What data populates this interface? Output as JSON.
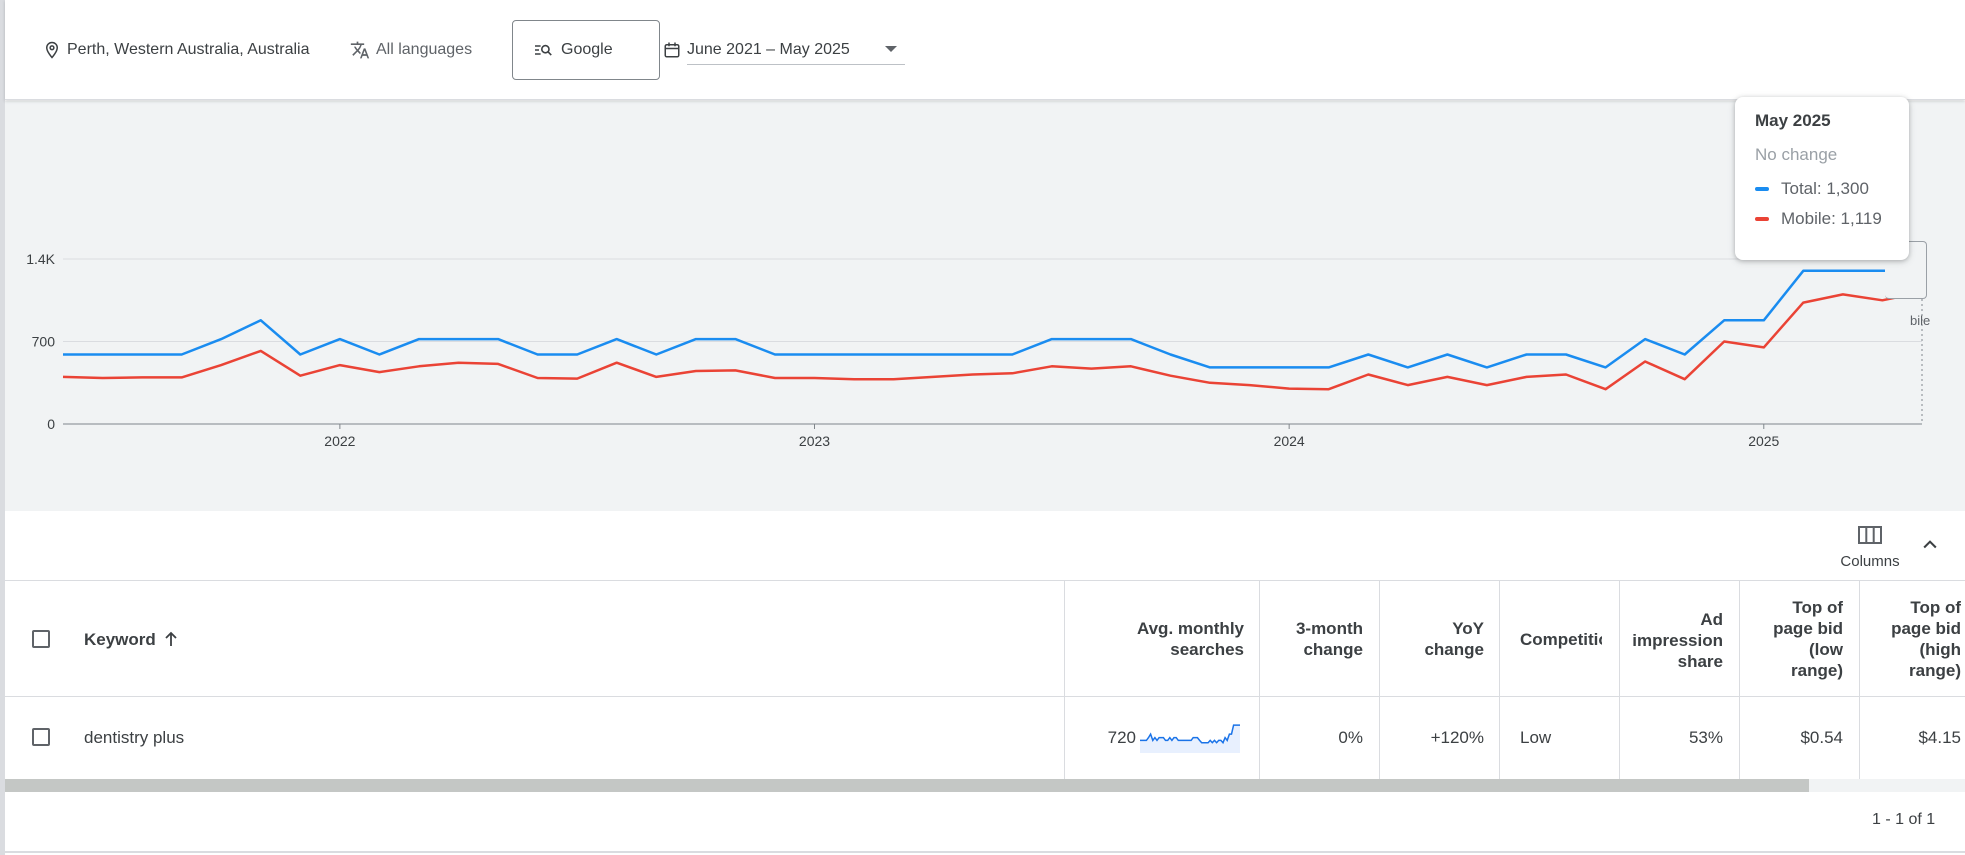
{
  "filters": {
    "location": "Perth, Western Australia, Australia",
    "language": "All languages",
    "network": "Google",
    "date_range": "June 2021 – May 2025"
  },
  "tooltip": {
    "title": "May 2025",
    "subtitle": "No change",
    "total_label": "Total: 1,300",
    "mobile_label": "Mobile: 1,119"
  },
  "behind_tooltip_text": "bile",
  "colors": {
    "total": "#1a8cf0",
    "mobile": "#ea4335",
    "accent": "#1a73e8"
  },
  "chart_data": {
    "type": "line",
    "title": "",
    "xlabel": "",
    "ylabel": "",
    "x_ticks": [
      "2022",
      "2023",
      "2024",
      "2025"
    ],
    "y_ticks": [
      "0",
      "700",
      "1.4K"
    ],
    "ylim": [
      0,
      1400
    ],
    "grid": true,
    "x": [
      "2021-06",
      "2021-07",
      "2021-08",
      "2021-09",
      "2021-10",
      "2021-11",
      "2021-12",
      "2022-01",
      "2022-02",
      "2022-03",
      "2022-04",
      "2022-05",
      "2022-06",
      "2022-07",
      "2022-08",
      "2022-09",
      "2022-10",
      "2022-11",
      "2022-12",
      "2023-01",
      "2023-02",
      "2023-03",
      "2023-04",
      "2023-05",
      "2023-06",
      "2023-07",
      "2023-08",
      "2023-09",
      "2023-10",
      "2023-11",
      "2023-12",
      "2024-01",
      "2024-02",
      "2024-03",
      "2024-04",
      "2024-05",
      "2024-06",
      "2024-07",
      "2024-08",
      "2024-09",
      "2024-10",
      "2024-11",
      "2024-12",
      "2025-01",
      "2025-02",
      "2025-03",
      "2025-04",
      "2025-05"
    ],
    "series": [
      {
        "name": "Total",
        "values": [
          590,
          590,
          590,
          590,
          720,
          880,
          590,
          720,
          590,
          720,
          720,
          720,
          590,
          590,
          720,
          590,
          720,
          720,
          590,
          590,
          590,
          590,
          590,
          590,
          590,
          720,
          720,
          720,
          590,
          480,
          480,
          480,
          480,
          590,
          480,
          590,
          480,
          590,
          590,
          480,
          720,
          590,
          880,
          880,
          1300,
          1300,
          1300,
          1300
        ]
      },
      {
        "name": "Mobile",
        "values": [
          400,
          390,
          395,
          395,
          500,
          620,
          410,
          500,
          440,
          490,
          520,
          510,
          390,
          385,
          520,
          400,
          450,
          455,
          390,
          390,
          380,
          380,
          400,
          420,
          430,
          490,
          470,
          490,
          410,
          350,
          330,
          300,
          295,
          420,
          330,
          400,
          330,
          400,
          420,
          295,
          530,
          380,
          700,
          650,
          1030,
          1100,
          1050,
          1119
        ]
      }
    ]
  },
  "toolbar": {
    "columns_label": "Columns"
  },
  "table": {
    "headers": {
      "keyword": "Keyword",
      "avg_monthly": [
        "Avg. monthly",
        "searches"
      ],
      "three_month": [
        "3-month",
        "change"
      ],
      "yoy": [
        "YoY",
        "change"
      ],
      "competition": "Competition",
      "ad_impression": [
        "Ad",
        "impression",
        "share"
      ],
      "top_low": [
        "Top of",
        "page bid",
        "(low",
        "range)"
      ],
      "top_high": [
        "Top of",
        "page bid",
        "(high",
        "range)"
      ]
    },
    "rows": [
      {
        "keyword": "dentistry plus",
        "avg_monthly": "720",
        "three_month": "0%",
        "yoy": "+120%",
        "competition": "Low",
        "ad_impression": "53%",
        "top_low": "$0.54",
        "top_high": "$4.15"
      }
    ]
  },
  "pagination": "1 - 1 of 1"
}
